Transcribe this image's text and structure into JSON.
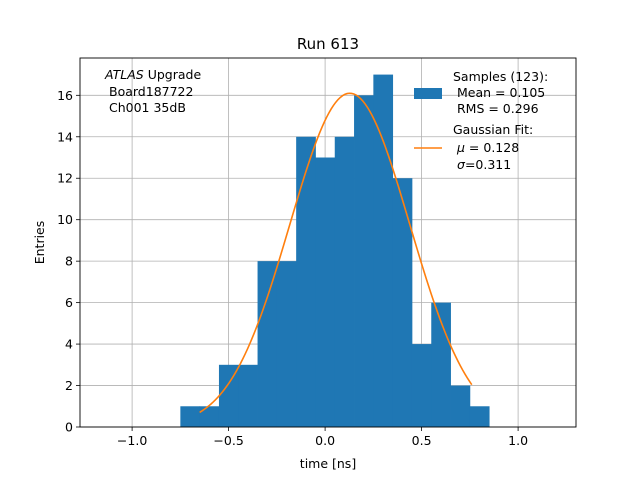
{
  "chart_data": {
    "type": "bar",
    "title": "Run 613",
    "xlabel": "time [ns]",
    "ylabel": "Entries",
    "xlim": [
      -1.27,
      1.3
    ],
    "ylim": [
      0,
      17.8
    ],
    "xticks": [
      -1.0,
      -0.5,
      0.0,
      0.5,
      1.0
    ],
    "xtick_labels": [
      "−1.0",
      "−0.5",
      "0.0",
      "0.5",
      "1.0"
    ],
    "yticks": [
      0,
      2,
      4,
      6,
      8,
      10,
      12,
      14,
      16
    ],
    "ytick_labels": [
      "0",
      "2",
      "4",
      "6",
      "8",
      "10",
      "12",
      "14",
      "16"
    ],
    "grid": true,
    "legend_position": "top-right",
    "histogram": {
      "name": "Samples (123):",
      "color": "#1f77b4",
      "bin_width": 0.1,
      "bin_edges": [
        -0.75,
        -0.65,
        -0.55,
        -0.45,
        -0.35,
        -0.25,
        -0.15,
        -0.05,
        0.05,
        0.15,
        0.25,
        0.35,
        0.45,
        0.55,
        0.65,
        0.75,
        0.85
      ],
      "counts": [
        1,
        1,
        3,
        3,
        8,
        8,
        14,
        13,
        14,
        16,
        17,
        12,
        4,
        6,
        2,
        1
      ]
    },
    "gaussian_fit": {
      "name": "Gaussian Fit:",
      "color": "#ff7f0e",
      "mu": 0.128,
      "sigma": 0.311,
      "amplitude": 16.1,
      "x_range": [
        -0.65,
        0.76
      ]
    },
    "legend": {
      "samples_title": "Samples (123):",
      "samples_mean": " Mean = 0.105",
      "samples_rms": " RMS = 0.296",
      "fit_title": "Gaussian Fit:",
      "fit_mu_symbol": "μ",
      "fit_mu_value": " = 0.128",
      "fit_sigma_symbol": "σ",
      "fit_sigma_value": "=0.311"
    },
    "annotation": {
      "line1_italic": "ATLAS",
      "line1_rest": " Upgrade",
      "line2": "Board187722",
      "line3": "Ch001 35dB"
    }
  }
}
